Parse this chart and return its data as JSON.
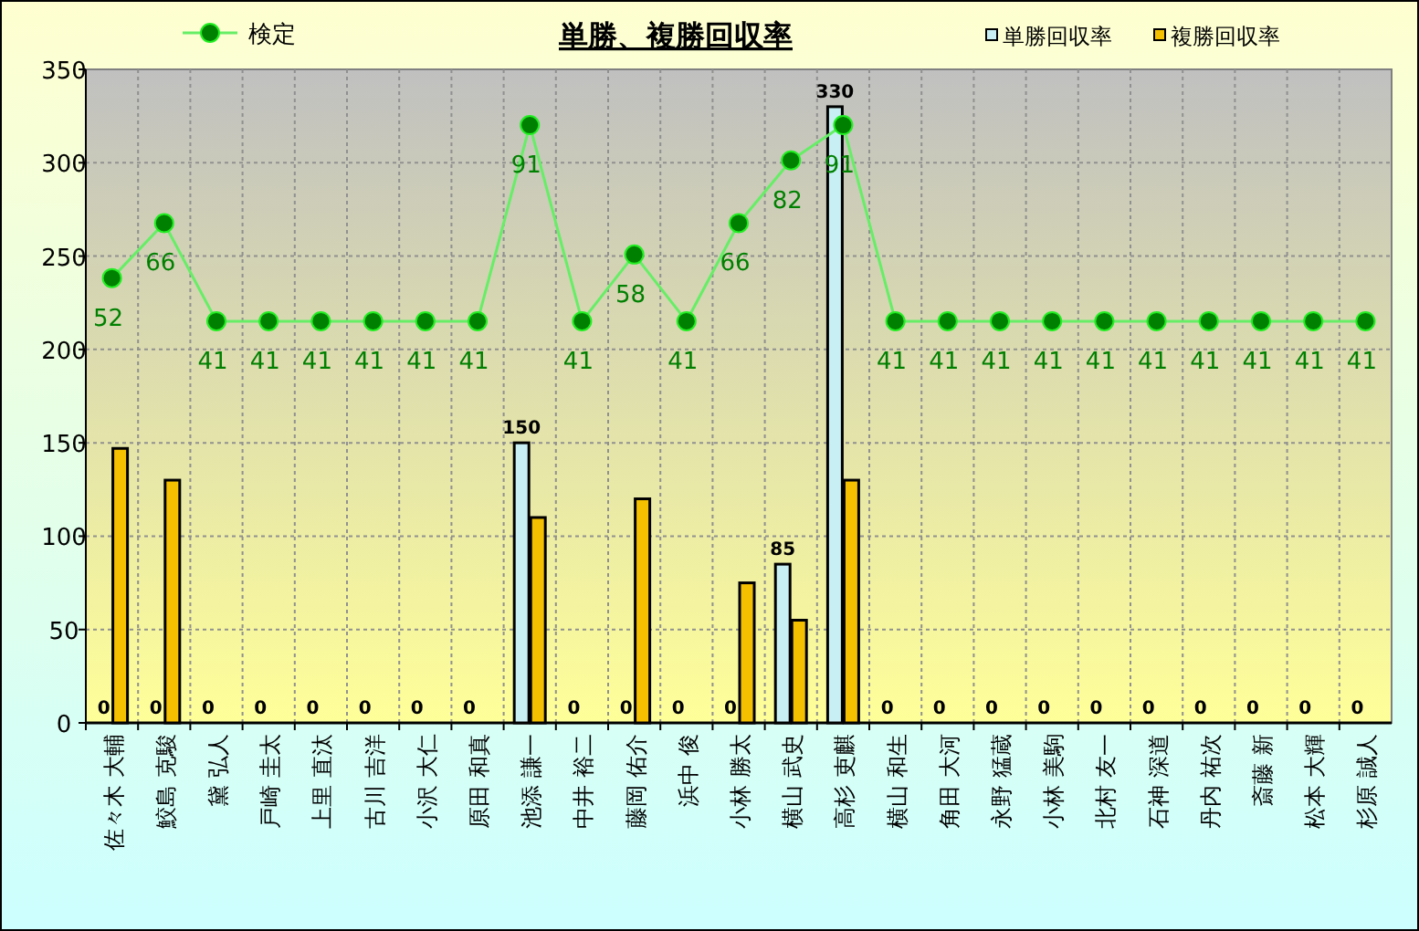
{
  "chart_data": {
    "type": "bar",
    "title": "単勝、複勝回収率",
    "categories": [
      "佐々木 大輔",
      "鮫島 克駿",
      "黛 弘人",
      "戸崎 圭太",
      "上里 直汰",
      "古川 吉洋",
      "小沢 大仁",
      "原田 和真",
      "池添 謙一",
      "中井 裕二",
      "藤岡 佑介",
      "浜中 俊",
      "小林 勝太",
      "横山 武史",
      "高杉 吏麒",
      "横山 和生",
      "角田 大河",
      "永野 猛蔵",
      "小林 美駒",
      "北村 友一",
      "石神 深道",
      "丹内 祐次",
      "斎藤 新",
      "松本 大輝",
      "杉原 誠人"
    ],
    "series": [
      {
        "name": "単勝回収率",
        "color": "#c8f0f4",
        "values": [
          0,
          0,
          0,
          0,
          0,
          0,
          0,
          0,
          150,
          0,
          0,
          0,
          0,
          85,
          330,
          0,
          0,
          0,
          0,
          0,
          0,
          0,
          0,
          0,
          0
        ],
        "value_labels": [
          "0",
          "0",
          "0",
          "0",
          "0",
          "0",
          "0",
          "0",
          "150",
          "0",
          "0",
          "0",
          "0",
          "85",
          "330",
          "0",
          "0",
          "0",
          "0",
          "0",
          "0",
          "0",
          "0",
          "0",
          "0"
        ]
      },
      {
        "name": "複勝回収率",
        "color": "#f5c000",
        "values": [
          147,
          130,
          0,
          0,
          0,
          0,
          0,
          0,
          110,
          0,
          120,
          0,
          75,
          55,
          130,
          0,
          0,
          0,
          0,
          0,
          0,
          0,
          0,
          0,
          0
        ]
      },
      {
        "name": "検定",
        "type": "line",
        "axis": "y2",
        "color": "#008000",
        "values": [
          52,
          66,
          41,
          41,
          41,
          41,
          41,
          41,
          91,
          41,
          58,
          41,
          66,
          82,
          91,
          41,
          41,
          41,
          41,
          41,
          41,
          41,
          41,
          41,
          41
        ],
        "value_labels": [
          "52",
          "66",
          "41",
          "41",
          "41",
          "41",
          "41",
          "41",
          "91",
          "41",
          "58",
          "41",
          "66",
          "82",
          "91",
          "41",
          "41",
          "41",
          "41",
          "41",
          "41",
          "41",
          "41",
          "41",
          "41"
        ]
      }
    ],
    "ylim": [
      0,
      350
    ],
    "yticks": [
      0,
      50,
      100,
      150,
      200,
      250,
      300,
      350
    ],
    "y2lim": [
      -61.4,
      105.2
    ],
    "grid": true,
    "legend": "top",
    "marker": "circle"
  }
}
